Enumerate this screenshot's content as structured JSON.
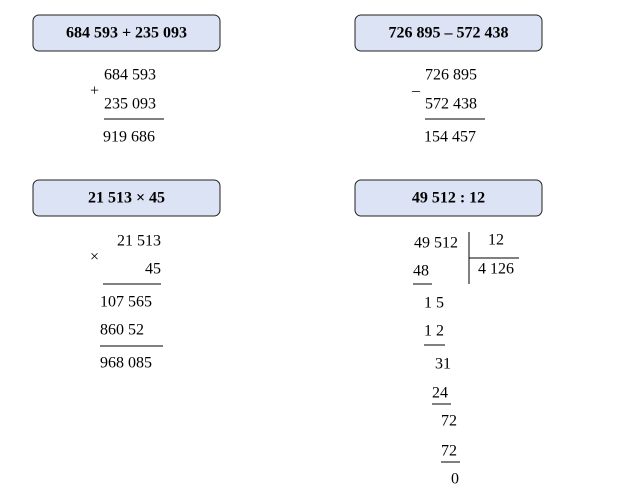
{
  "problems": [
    {
      "title": "684 593 + 235 093",
      "operator": "+",
      "operand1": "684 593",
      "operand2": "235 093",
      "result": "919 686"
    },
    {
      "title": "726 895 – 572 438",
      "operator": "–",
      "operand1": "726 895",
      "operand2": "572 438",
      "result": "154 457"
    },
    {
      "title": "21 513 × 45",
      "operator": "×",
      "operand1": "21 513",
      "operand2": "45",
      "partials": [
        "107 565",
        "860 52"
      ],
      "result": "968 085"
    },
    {
      "title": "49 512 : 12",
      "dividend": "49 512",
      "divisor": "12",
      "quotient": "4 126",
      "steps": [
        "48",
        "1 5",
        "1 2",
        "31",
        "24",
        "72",
        "72",
        "0"
      ]
    }
  ]
}
